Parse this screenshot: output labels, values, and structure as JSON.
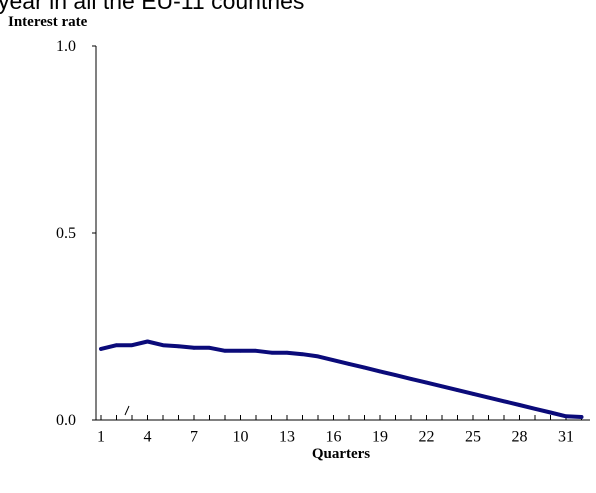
{
  "page": {
    "heading": "year in all the EU-11 countries"
  },
  "chart_data": {
    "type": "line",
    "title": "",
    "ylabel": "Interest rate",
    "xlabel": "Quarters",
    "xlim": [
      1,
      32
    ],
    "ylim": [
      0,
      1
    ],
    "x_ticks": [
      1,
      4,
      7,
      10,
      13,
      16,
      19,
      22,
      25,
      28,
      31
    ],
    "y_ticks": [
      {
        "value": 0.0,
        "label": "0.0"
      },
      {
        "value": 0.5,
        "label": "0.5"
      },
      {
        "value": 1.0,
        "label": "1.0"
      }
    ],
    "grid": false,
    "series_color": "#0b0b7a",
    "series": [
      {
        "x": [
          1,
          2,
          3,
          4,
          5,
          6,
          7,
          8,
          9,
          10,
          11,
          12,
          13,
          14,
          15,
          16,
          17,
          18,
          19,
          20,
          21,
          22,
          23,
          24,
          25,
          26,
          27,
          28,
          29,
          30,
          31,
          32
        ],
        "values": [
          0.19,
          0.2,
          0.2,
          0.21,
          0.2,
          0.197,
          0.193,
          0.193,
          0.185,
          0.185,
          0.185,
          0.18,
          0.18,
          0.176,
          0.17,
          0.16,
          0.15,
          0.14,
          0.13,
          0.12,
          0.11,
          0.1,
          0.09,
          0.08,
          0.07,
          0.06,
          0.05,
          0.04,
          0.03,
          0.02,
          0.01,
          0.008
        ]
      }
    ]
  }
}
